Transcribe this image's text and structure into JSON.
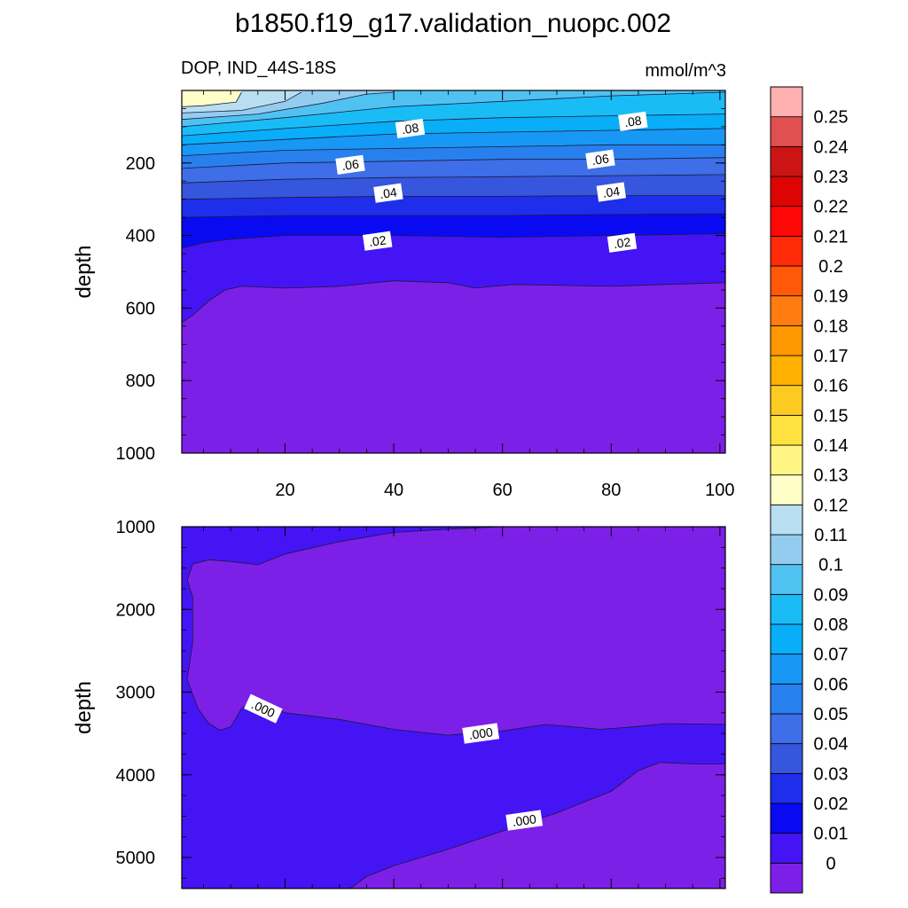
{
  "figure": {
    "title": "b1850.f19_g17.validation_nuopc.002",
    "variable_region": "DOP, IND_44S-18S",
    "units": "mmol/m^3"
  },
  "chart_data": [
    {
      "type": "contour",
      "panel": "upper",
      "xlabel": "",
      "ylabel": "depth",
      "xlim": [
        1,
        101
      ],
      "ylim": [
        1000,
        0
      ],
      "y_reversed": true,
      "x_ticks": [
        "20",
        "40",
        "60",
        "80",
        "100"
      ],
      "y_ticks": [
        "200",
        "400",
        "600",
        "800",
        "1000"
      ],
      "contour_labels": [
        {
          "text": ".08",
          "x": 43,
          "y": 105
        },
        {
          "text": ".08",
          "x": 84,
          "y": 85
        },
        {
          "text": ".06",
          "x": 32,
          "y": 205
        },
        {
          "text": ".06",
          "x": 78,
          "y": 190
        },
        {
          "text": ".04",
          "x": 39,
          "y": 283
        },
        {
          "text": ".04",
          "x": 80,
          "y": 280
        },
        {
          "text": ".02",
          "x": 37,
          "y": 415
        },
        {
          "text": ".02",
          "x": 82,
          "y": 420
        }
      ],
      "contour_levels": [
        {
          "level": 0.12,
          "depth_at_x": [
            [
              1,
              45
            ],
            [
              5,
              42
            ],
            [
              11,
              32
            ],
            [
              12,
              5
            ]
          ]
        },
        {
          "level": 0.11,
          "depth_at_x": [
            [
              1,
              62
            ],
            [
              12,
              55
            ],
            [
              20,
              30
            ],
            [
              23,
              5
            ]
          ]
        },
        {
          "level": 0.1,
          "depth_at_x": [
            [
              1,
              80
            ],
            [
              15,
              65
            ],
            [
              27,
              35
            ],
            [
              35,
              10
            ],
            [
              40,
              5
            ]
          ]
        },
        {
          "level": 0.09,
          "depth_at_x": [
            [
              1,
              100
            ],
            [
              20,
              75
            ],
            [
              40,
              45
            ],
            [
              60,
              30
            ],
            [
              80,
              15
            ],
            [
              101,
              5
            ]
          ]
        },
        {
          "level": 0.08,
          "depth_at_x": [
            [
              1,
              125
            ],
            [
              20,
              105
            ],
            [
              40,
              85
            ],
            [
              60,
              75
            ],
            [
              80,
              70
            ],
            [
              101,
              65
            ]
          ]
        },
        {
          "level": 0.07,
          "depth_at_x": [
            [
              1,
              150
            ],
            [
              20,
              135
            ],
            [
              40,
              120
            ],
            [
              60,
              115
            ],
            [
              80,
              110
            ],
            [
              101,
              105
            ]
          ]
        },
        {
          "level": 0.06,
          "depth_at_x": [
            [
              1,
              180
            ],
            [
              20,
              165
            ],
            [
              40,
              160
            ],
            [
              60,
              155
            ],
            [
              80,
              150
            ],
            [
              101,
              150
            ]
          ]
        },
        {
          "level": 0.05,
          "depth_at_x": [
            [
              1,
              215
            ],
            [
              20,
              200
            ],
            [
              40,
              195
            ],
            [
              60,
              190
            ],
            [
              80,
              190
            ],
            [
              101,
              185
            ]
          ]
        },
        {
          "level": 0.04,
          "depth_at_x": [
            [
              1,
              255
            ],
            [
              20,
              245
            ],
            [
              40,
              240
            ],
            [
              60,
              238
            ],
            [
              80,
              235
            ],
            [
              101,
              232
            ]
          ]
        },
        {
          "level": 0.03,
          "depth_at_x": [
            [
              1,
              300
            ],
            [
              20,
              295
            ],
            [
              40,
              292
            ],
            [
              60,
              292
            ],
            [
              80,
              290
            ],
            [
              101,
              290
            ]
          ]
        },
        {
          "level": 0.02,
          "depth_at_x": [
            [
              1,
              350
            ],
            [
              20,
              345
            ],
            [
              40,
              345
            ],
            [
              60,
              345
            ],
            [
              80,
              342
            ],
            [
              101,
              340
            ]
          ]
        },
        {
          "level": 0.01,
          "depth_at_x": [
            [
              1,
              435
            ],
            [
              5,
              420
            ],
            [
              10,
              410
            ],
            [
              20,
              400
            ],
            [
              40,
              400
            ],
            [
              60,
              405
            ],
            [
              80,
              400
            ],
            [
              101,
              395
            ]
          ]
        },
        {
          "level": 0.0,
          "depth_at_x": [
            [
              1,
              640
            ],
            [
              3,
              620
            ],
            [
              6,
              580
            ],
            [
              9,
              550
            ],
            [
              12,
              540
            ],
            [
              20,
              545
            ],
            [
              30,
              540
            ],
            [
              40,
              525
            ],
            [
              50,
              530
            ],
            [
              55,
              545
            ],
            [
              62,
              535
            ],
            [
              80,
              540
            ],
            [
              90,
              535
            ],
            [
              101,
              530
            ]
          ]
        }
      ]
    },
    {
      "type": "contour",
      "panel": "lower",
      "xlabel": "",
      "ylabel": "depth",
      "xlim": [
        1,
        101
      ],
      "ylim": [
        5375,
        1000
      ],
      "y_reversed": true,
      "x_ticks": [],
      "y_ticks": [
        "1000",
        "2000",
        "3000",
        "4000",
        "5000"
      ],
      "contour_labels": [
        {
          "text": ".000",
          "x": 16,
          "y": 3200
        },
        {
          "text": ".000",
          "x": 56,
          "y": 3500
        },
        {
          "text": ".000",
          "x": 64,
          "y": 4550
        }
      ],
      "contour_levels": [
        {
          "level": 0.0,
          "region": "upper-region",
          "value_inside": 0,
          "outline": [
            [
              2,
              1650
            ],
            [
              3,
              1850
            ],
            [
              3,
              2400
            ],
            [
              2,
              2850
            ],
            [
              4,
              3200
            ],
            [
              6,
              3380
            ],
            [
              8,
              3460
            ],
            [
              10,
              3420
            ],
            [
              12,
              3200
            ],
            [
              14,
              3100
            ],
            [
              20,
              3250
            ],
            [
              30,
              3330
            ],
            [
              40,
              3450
            ],
            [
              50,
              3520
            ],
            [
              60,
              3470
            ],
            [
              68,
              3390
            ],
            [
              78,
              3450
            ],
            [
              84,
              3420
            ],
            [
              90,
              3380
            ],
            [
              101,
              3390
            ],
            [
              101,
              1000
            ],
            [
              60,
              1000
            ],
            [
              50,
              1030
            ],
            [
              40,
              1070
            ],
            [
              30,
              1180
            ],
            [
              20,
              1330
            ],
            [
              15,
              1460
            ],
            [
              10,
              1420
            ],
            [
              6,
              1400
            ],
            [
              3,
              1450
            ]
          ]
        },
        {
          "level": 0.0,
          "region": "bottom-right-region",
          "value_inside": 0,
          "outline": [
            [
              32,
              5375
            ],
            [
              35,
              5230
            ],
            [
              40,
              5100
            ],
            [
              50,
              4900
            ],
            [
              60,
              4680
            ],
            [
              70,
              4460
            ],
            [
              80,
              4200
            ],
            [
              85,
              3950
            ],
            [
              89,
              3850
            ],
            [
              95,
              3870
            ],
            [
              101,
              3870
            ],
            [
              101,
              5375
            ]
          ]
        }
      ]
    },
    {
      "type": "colorbar",
      "orientation": "vertical",
      "labels": [
        "0.25",
        "0.24",
        "0.23",
        "0.22",
        "0.21",
        "0.2",
        "0.19",
        "0.18",
        "0.17",
        "0.16",
        "0.15",
        "0.14",
        "0.13",
        "0.12",
        "0.11",
        "0.1",
        "0.09",
        "0.08",
        "0.07",
        "0.06",
        "0.05",
        "0.04",
        "0.03",
        "0.02",
        "0.01",
        "0"
      ],
      "bins_bottom_to_top": [
        {
          "range": "<0",
          "color": "#7C20E8"
        },
        {
          "range": "0-0.01",
          "color": "#4414F5"
        },
        {
          "range": "0.01-0.02",
          "color": "#0A0AF2"
        },
        {
          "range": "0.02-0.03",
          "color": "#1E2EEB"
        },
        {
          "range": "0.03-0.04",
          "color": "#3656DE"
        },
        {
          "range": "0.04-0.05",
          "color": "#3E6EE8"
        },
        {
          "range": "0.05-0.06",
          "color": "#2880EE"
        },
        {
          "range": "0.06-0.07",
          "color": "#1898F5"
        },
        {
          "range": "0.07-0.08",
          "color": "#08AEF7"
        },
        {
          "range": "0.08-0.09",
          "color": "#1ABCF6"
        },
        {
          "range": "0.09-0.10",
          "color": "#50C2F2"
        },
        {
          "range": "0.10-0.11",
          "color": "#94CCF0"
        },
        {
          "range": "0.11-0.12",
          "color": "#B8DEF2"
        },
        {
          "range": "0.12-0.13",
          "color": "#FFFDC8"
        },
        {
          "range": "0.13-0.14",
          "color": "#FFF585"
        },
        {
          "range": "0.14-0.15",
          "color": "#FFE240"
        },
        {
          "range": "0.15-0.16",
          "color": "#FCCA20"
        },
        {
          "range": "0.16-0.17",
          "color": "#FFB000"
        },
        {
          "range": "0.17-0.18",
          "color": "#FF9800"
        },
        {
          "range": "0.18-0.19",
          "color": "#FF7C10"
        },
        {
          "range": "0.19-0.20",
          "color": "#FF5808"
        },
        {
          "range": "0.20-0.21",
          "color": "#FF2A08"
        },
        {
          "range": "0.21-0.22",
          "color": "#FF0808"
        },
        {
          "range": "0.22-0.23",
          "color": "#DD0404"
        },
        {
          "range": "0.23-0.24",
          "color": "#CC1414"
        },
        {
          "range": "0.24-0.25",
          "color": "#E05050"
        },
        {
          "range": ">0.25",
          "color": "#FFB0B0"
        }
      ]
    }
  ]
}
